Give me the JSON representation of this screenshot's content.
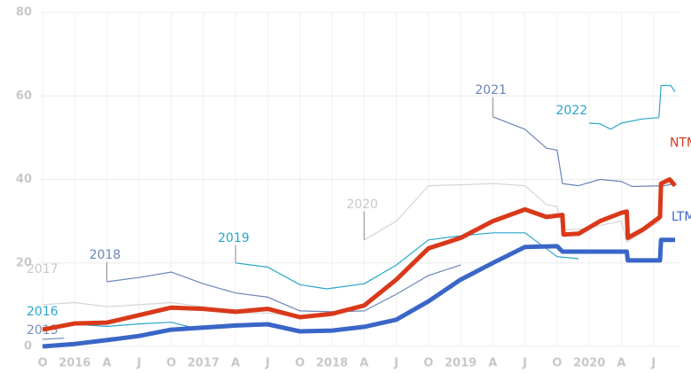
{
  "chart_data": {
    "type": "line",
    "xlim": [
      -1,
      59.5
    ],
    "xticks": [
      {
        "value": 0,
        "label": "O"
      },
      {
        "value": 3,
        "label": "2016"
      },
      {
        "value": 6,
        "label": "A"
      },
      {
        "value": 9,
        "label": "J"
      },
      {
        "value": 12,
        "label": "O"
      },
      {
        "value": 15,
        "label": "2017"
      },
      {
        "value": 18,
        "label": "A"
      },
      {
        "value": 21,
        "label": "J"
      },
      {
        "value": 24,
        "label": "O"
      },
      {
        "value": 27,
        "label": "2018"
      },
      {
        "value": 30,
        "label": "A"
      },
      {
        "value": 33,
        "label": "J"
      },
      {
        "value": 36,
        "label": "O"
      },
      {
        "value": 39,
        "label": "2019"
      },
      {
        "value": 42,
        "label": "A"
      },
      {
        "value": 45,
        "label": "J"
      },
      {
        "value": 48,
        "label": "O"
      },
      {
        "value": 51,
        "label": "2020"
      },
      {
        "value": 54,
        "label": "A"
      },
      {
        "value": 57,
        "label": "J"
      }
    ],
    "ylim": [
      0,
      80
    ],
    "yticks": [
      0,
      20,
      40,
      60,
      80
    ],
    "grid": true,
    "series": [
      {
        "name": "2015",
        "color": "#7a8fb8",
        "width": 1.2,
        "x": [
          0,
          2
        ],
        "values": [
          1.7,
          2
        ]
      },
      {
        "name": "2016",
        "color": "#2aa6c9",
        "width": 1.2,
        "x": [
          0,
          3,
          6,
          9,
          12,
          14
        ],
        "values": [
          4.5,
          5.3,
          4.8,
          5.4,
          5.8,
          4.5
        ]
      },
      {
        "name": "2017",
        "color": "#d5d5d5",
        "width": 1.2,
        "x": [
          0,
          3,
          6,
          9,
          12,
          15,
          18,
          21,
          24,
          27
        ],
        "values": [
          10,
          10.5,
          9.5,
          10,
          10.5,
          9.5,
          8,
          8,
          7,
          8
        ]
      },
      {
        "name": "2018",
        "color": "#6b85b8",
        "width": 1.2,
        "x": [
          6,
          9,
          12,
          15,
          18,
          21,
          24,
          27,
          30,
          33,
          36,
          39
        ],
        "values": [
          15.5,
          16.5,
          17.8,
          15,
          12.8,
          11.8,
          8.5,
          8.3,
          8.5,
          12.5,
          17,
          19.5
        ]
      },
      {
        "name": "2019",
        "color": "#2aa6c9",
        "width": 1.2,
        "x": [
          18,
          21,
          24,
          26.5,
          30,
          33,
          36,
          39,
          42,
          45,
          48,
          50
        ],
        "values": [
          20,
          19,
          14.8,
          13.8,
          15,
          19.5,
          25.5,
          26.5,
          27.2,
          27.2,
          21.5,
          21
        ]
      },
      {
        "name": "2020",
        "color": "#d5d5d5",
        "width": 1.2,
        "x": [
          30,
          33,
          36,
          39,
          42,
          45,
          47,
          48,
          48.5,
          50,
          54,
          54.5,
          57.6,
          57.7
        ],
        "values": [
          25.5,
          30,
          38.5,
          38.7,
          39,
          38.5,
          34,
          33.5,
          28,
          28,
          30,
          25,
          30,
          38
        ]
      },
      {
        "name": "2021",
        "color": "#6b85b8",
        "width": 1.2,
        "x": [
          42,
          45,
          47,
          48,
          48.5,
          50,
          52,
          54,
          55,
          58,
          59
        ],
        "values": [
          55,
          52,
          47.5,
          47,
          39,
          38.5,
          40,
          39.5,
          38.3,
          38.5,
          39
        ]
      },
      {
        "name": "2022",
        "color": "#2aa6c9",
        "width": 1.2,
        "x": [
          51,
          52,
          53,
          54,
          56,
          57.5,
          57.7,
          58.6,
          59
        ],
        "values": [
          53.5,
          53.3,
          52,
          53.5,
          54.5,
          54.8,
          62.5,
          62.5,
          61
        ]
      },
      {
        "name": "LTM",
        "color": "#3a66c8",
        "width": 5,
        "x": [
          0,
          3,
          6,
          9,
          12,
          15,
          18,
          21,
          24,
          27,
          30,
          33,
          36,
          39,
          42,
          45,
          48,
          48.5,
          54.5,
          54.6,
          57.6,
          57.7,
          59
        ],
        "values": [
          0,
          0.6,
          1.5,
          2.5,
          4,
          4.5,
          5,
          5.3,
          3.6,
          3.8,
          4.7,
          6.4,
          10.8,
          16,
          20,
          23.8,
          24,
          22.7,
          22.7,
          20.6,
          20.6,
          25.5,
          25.5
        ]
      },
      {
        "name": "NTM",
        "color": "#d9391a",
        "width": 5,
        "x": [
          0,
          3,
          6,
          9,
          12,
          15,
          18,
          21,
          24,
          27,
          30,
          33,
          36,
          39,
          42,
          45,
          47,
          48.5,
          48.6,
          50,
          52,
          54,
          54.5,
          54.6,
          56,
          57.6,
          57.7,
          58.5,
          59
        ],
        "values": [
          4,
          5.5,
          5.7,
          7.5,
          9.3,
          9,
          8.3,
          9,
          7,
          7.8,
          9.8,
          16,
          23.5,
          26,
          30,
          32.8,
          31,
          31.5,
          26.8,
          27,
          30,
          32,
          32.3,
          26,
          28,
          31,
          39,
          40,
          38.5
        ]
      }
    ]
  }
}
